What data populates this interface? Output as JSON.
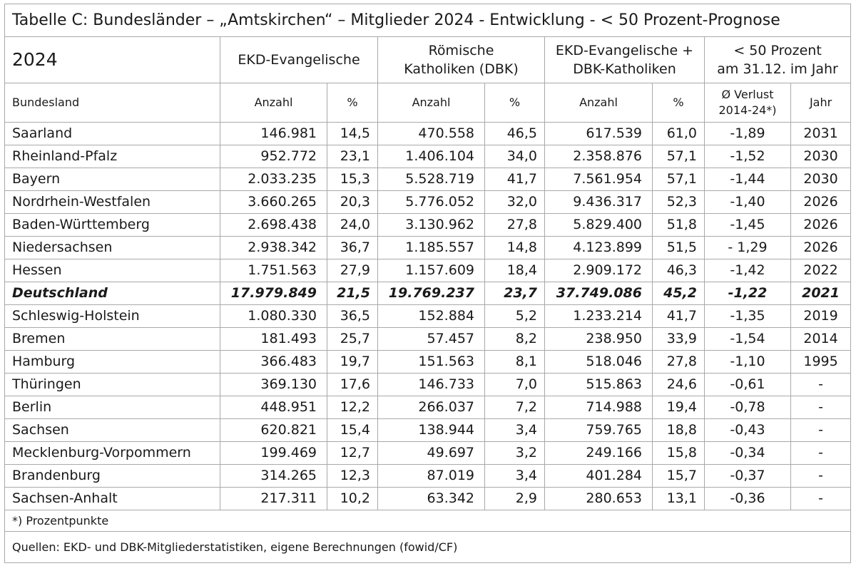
{
  "title": "Tabelle C: Bundesländer – „Amtskirchen“ – Mitglieder 2024 - Entwicklung - < 50 Prozent-Prognose",
  "header": {
    "year": "2024",
    "ekd": "EKD-Evangelische",
    "rk_line1": "Römische",
    "rk_line2": "Katholiken (DBK)",
    "sum_line1": "EKD-Evangelische +",
    "sum_line2": "DBK-Katholiken",
    "forecast_line1": "< 50 Prozent",
    "forecast_line2": "am 31.12. im Jahr"
  },
  "subheader": {
    "bundesland": "Bundesland",
    "anzahl1": "Anzahl",
    "pct1": "%",
    "anzahl2": "Anzahl",
    "pct2": "%",
    "anzahl3": "Anzahl",
    "pct3": "%",
    "loss_line1": "Ø Verlust",
    "loss_line2": "2014-24*)",
    "jahr": "Jahr"
  },
  "rows": [
    {
      "land": "Saarland",
      "ekd_n": "146.981",
      "ekd_p": "14,5",
      "rk_n": "470.558",
      "rk_p": "46,5",
      "sum_n": "617.539",
      "sum_p": "61,0",
      "loss": "-1,89",
      "year": "2031"
    },
    {
      "land": "Rheinland-Pfalz",
      "ekd_n": "952.772",
      "ekd_p": "23,1",
      "rk_n": "1.406.104",
      "rk_p": "34,0",
      "sum_n": "2.358.876",
      "sum_p": "57,1",
      "loss": "-1,52",
      "year": "2030"
    },
    {
      "land": "Bayern",
      "ekd_n": "2.033.235",
      "ekd_p": "15,3",
      "rk_n": "5.528.719",
      "rk_p": "41,7",
      "sum_n": "7.561.954",
      "sum_p": "57,1",
      "loss": "-1,44",
      "year": "2030"
    },
    {
      "land": "Nordrhein-Westfalen",
      "ekd_n": "3.660.265",
      "ekd_p": "20,3",
      "rk_n": "5.776.052",
      "rk_p": "32,0",
      "sum_n": "9.436.317",
      "sum_p": "52,3",
      "loss": "-1,40",
      "year": "2026"
    },
    {
      "land": "Baden-Württemberg",
      "ekd_n": "2.698.438",
      "ekd_p": "24,0",
      "rk_n": "3.130.962",
      "rk_p": "27,8",
      "sum_n": "5.829.400",
      "sum_p": "51,8",
      "loss": "-1,45",
      "year": "2026"
    },
    {
      "land": "Niedersachsen",
      "ekd_n": "2.938.342",
      "ekd_p": "36,7",
      "rk_n": "1.185.557",
      "rk_p": "14,8",
      "sum_n": "4.123.899",
      "sum_p": "51,5",
      "loss": "- 1,29",
      "year": "2026"
    },
    {
      "land": "Hessen",
      "ekd_n": "1.751.563",
      "ekd_p": "27,9",
      "rk_n": "1.157.609",
      "rk_p": "18,4",
      "sum_n": "2.909.172",
      "sum_p": "46,3",
      "loss": "-1,42",
      "year": "2022"
    },
    {
      "land": "Deutschland",
      "ekd_n": "17.979.849",
      "ekd_p": "21,5",
      "rk_n": "19.769.237",
      "rk_p": "23,7",
      "sum_n": "37.749.086",
      "sum_p": "45,2",
      "loss": "-1,22",
      "year": "2021",
      "bold": true
    },
    {
      "land": "Schleswig-Holstein",
      "ekd_n": "1.080.330",
      "ekd_p": "36,5",
      "rk_n": "152.884",
      "rk_p": "5,2",
      "sum_n": "1.233.214",
      "sum_p": "41,7",
      "loss": "-1,35",
      "year": "2019"
    },
    {
      "land": "Bremen",
      "ekd_n": "181.493",
      "ekd_p": "25,7",
      "rk_n": "57.457",
      "rk_p": "8,2",
      "sum_n": "238.950",
      "sum_p": "33,9",
      "loss": "-1,54",
      "year": "2014"
    },
    {
      "land": "Hamburg",
      "ekd_n": "366.483",
      "ekd_p": "19,7",
      "rk_n": "151.563",
      "rk_p": "8,1",
      "sum_n": "518.046",
      "sum_p": "27,8",
      "loss": "-1,10",
      "year": "1995"
    },
    {
      "land": "Thüringen",
      "ekd_n": "369.130",
      "ekd_p": "17,6",
      "rk_n": "146.733",
      "rk_p": "7,0",
      "sum_n": "515.863",
      "sum_p": "24,6",
      "loss": "-0,61",
      "year": "-"
    },
    {
      "land": "Berlin",
      "ekd_n": "448.951",
      "ekd_p": "12,2",
      "rk_n": "266.037",
      "rk_p": "7,2",
      "sum_n": "714.988",
      "sum_p": "19,4",
      "loss": "-0,78",
      "year": "-"
    },
    {
      "land": "Sachsen",
      "ekd_n": "620.821",
      "ekd_p": "15,4",
      "rk_n": "138.944",
      "rk_p": "3,4",
      "sum_n": "759.765",
      "sum_p": "18,8",
      "loss": "-0,43",
      "year": "-"
    },
    {
      "land": "Mecklenburg-Vorpommern",
      "ekd_n": "199.469",
      "ekd_p": "12,7",
      "rk_n": "49.697",
      "rk_p": "3,2",
      "sum_n": "249.166",
      "sum_p": "15,8",
      "loss": "-0,34",
      "year": "-"
    },
    {
      "land": "Brandenburg",
      "ekd_n": "314.265",
      "ekd_p": "12,3",
      "rk_n": "87.019",
      "rk_p": "3,4",
      "sum_n": "401.284",
      "sum_p": "15,7",
      "loss": "-0,37",
      "year": "-"
    },
    {
      "land": "Sachsen-Anhalt",
      "ekd_n": "217.311",
      "ekd_p": "10,2",
      "rk_n": "63.342",
      "rk_p": "2,9",
      "sum_n": "280.653",
      "sum_p": "13,1",
      "loss": "-0,36",
      "year": "-"
    }
  ],
  "footnote": "*) Prozentpunkte",
  "source": "Quellen: EKD- und DBK-Mitgliederstatistiken, eigene Berechnungen (fowid/CF)"
}
